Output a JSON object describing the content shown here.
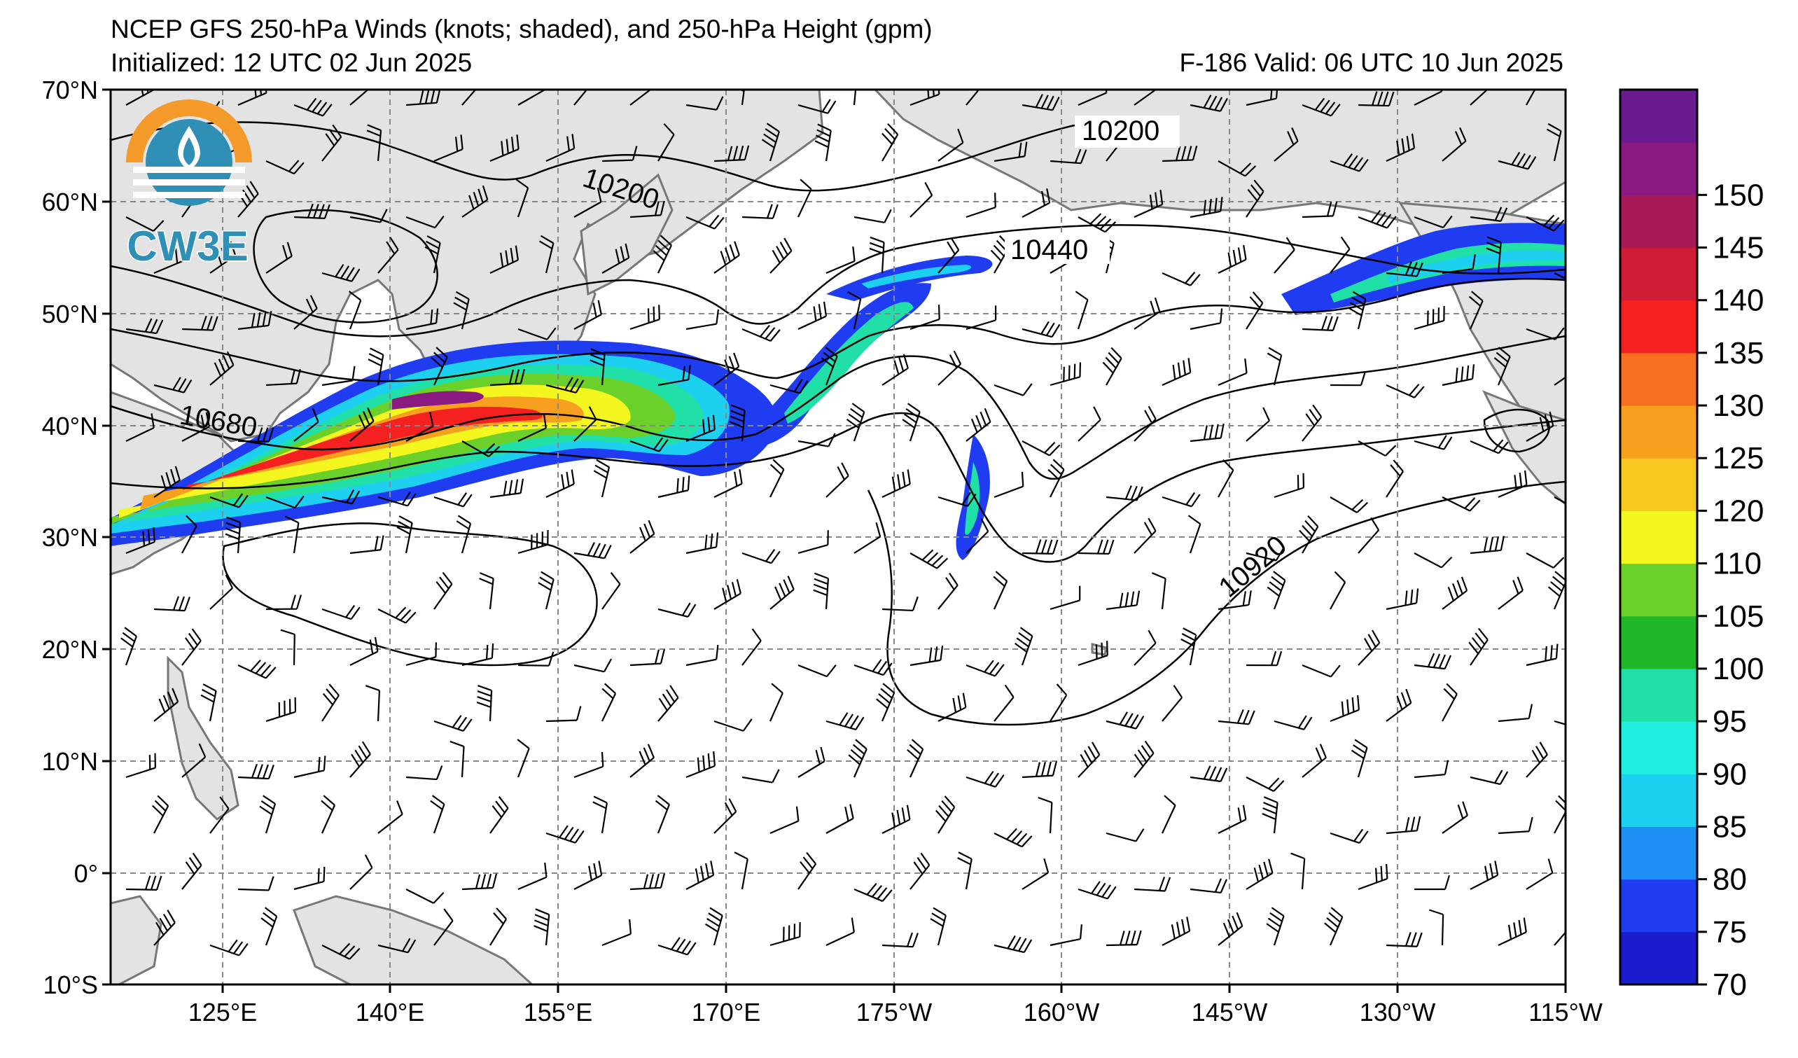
{
  "header": {
    "title": "NCEP GFS 250-hPa Winds (knots; shaded), and 250-hPa Height (gpm)",
    "initialized": "Initialized: 12 UTC 02 Jun 2025",
    "valid": "F-186  Valid: 06 UTC 10 Jun 2025"
  },
  "logo": {
    "text": "CW3E",
    "colors": {
      "orange": "#f39a2b",
      "blue": "#2f8fb5"
    }
  },
  "axes": {
    "lat_labels": [
      "70°N",
      "60°N",
      "50°N",
      "40°N",
      "30°N",
      "20°N",
      "10°N",
      "0°",
      "10°S"
    ],
    "lon_labels": [
      "125°E",
      "140°E",
      "155°E",
      "170°E",
      "175°W",
      "160°W",
      "145°W",
      "130°W",
      "115°W"
    ],
    "lat_range": [
      -10,
      70
    ],
    "lon_range": [
      "115°E",
      "115°W"
    ],
    "grid": true
  },
  "contours": {
    "labels": [
      "10200",
      "10200",
      "10440",
      "10680",
      "10920"
    ],
    "units": "gpm"
  },
  "colorbar": {
    "ticks": [
      "70",
      "75",
      "80",
      "85",
      "90",
      "95",
      "100",
      "105",
      "110",
      "120",
      "125",
      "130",
      "135",
      "140",
      "145",
      "150"
    ],
    "colors": [
      "#1c1ccf",
      "#1f3cf0",
      "#1e8ff5",
      "#1ed0f0",
      "#20f0e0",
      "#20e0a8",
      "#1fb82a",
      "#6cd02a",
      "#f4f71f",
      "#f7c820",
      "#f7a020",
      "#f77020",
      "#f52020",
      "#d01c34",
      "#a8195a",
      "#8a1a82",
      "#6a1b90"
    ]
  },
  "land_color": "#e3e3e3",
  "ocean_color": "#ffffff"
}
